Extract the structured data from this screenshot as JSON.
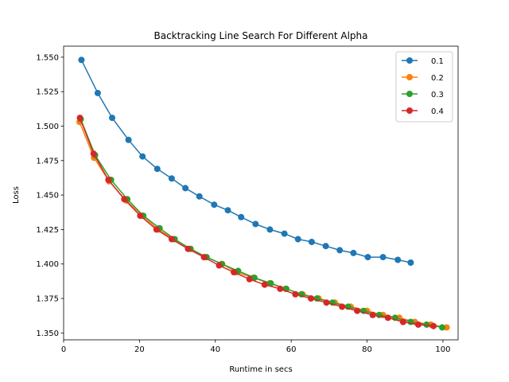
{
  "chart_data": {
    "type": "line",
    "title": "Backtracking Line Search For Different Alpha",
    "xlabel": "Runtime in secs",
    "ylabel": "Loss",
    "xlim": [
      0,
      104
    ],
    "ylim": [
      1.345,
      1.558
    ],
    "xticks": [
      0,
      20,
      40,
      60,
      80,
      100
    ],
    "xtick_labels": [
      "0",
      "20",
      "40",
      "60",
      "80",
      "100"
    ],
    "yticks": [
      1.35,
      1.375,
      1.4,
      1.425,
      1.45,
      1.475,
      1.5,
      1.525,
      1.55
    ],
    "ytick_labels": [
      "1.350",
      "1.375",
      "1.400",
      "1.425",
      "1.450",
      "1.475",
      "1.500",
      "1.525",
      "1.550"
    ],
    "grid": false,
    "legend_position": "top-right",
    "series": [
      {
        "name": "0.1",
        "color": "#1f77b4",
        "points": [
          [
            4.7,
            1.548
          ],
          [
            9.0,
            1.524
          ],
          [
            12.8,
            1.506
          ],
          [
            17.1,
            1.49
          ],
          [
            20.8,
            1.478
          ],
          [
            24.7,
            1.469
          ],
          [
            28.5,
            1.462
          ],
          [
            32.1,
            1.455
          ],
          [
            35.8,
            1.449
          ],
          [
            39.7,
            1.443
          ],
          [
            43.3,
            1.439
          ],
          [
            46.8,
            1.434
          ],
          [
            50.6,
            1.429
          ],
          [
            54.4,
            1.425
          ],
          [
            58.2,
            1.422
          ],
          [
            61.8,
            1.418
          ],
          [
            65.4,
            1.416
          ],
          [
            69.1,
            1.413
          ],
          [
            72.8,
            1.41
          ],
          [
            76.4,
            1.408
          ],
          [
            80.2,
            1.405
          ],
          [
            84.2,
            1.405
          ],
          [
            88.1,
            1.403
          ],
          [
            91.5,
            1.401
          ]
        ]
      },
      {
        "name": "0.2",
        "color": "#ff7f0e",
        "points": [
          [
            4.2,
            1.503
          ],
          [
            8.0,
            1.477
          ],
          [
            12.0,
            1.46
          ],
          [
            16.5,
            1.446
          ],
          [
            20.8,
            1.435
          ],
          [
            25.0,
            1.425
          ],
          [
            29.0,
            1.418
          ],
          [
            33.5,
            1.411
          ],
          [
            37.6,
            1.405
          ],
          [
            41.8,
            1.4
          ],
          [
            45.6,
            1.394
          ],
          [
            50.0,
            1.39
          ],
          [
            54.3,
            1.386
          ],
          [
            58.5,
            1.382
          ],
          [
            63.0,
            1.378
          ],
          [
            67.2,
            1.375
          ],
          [
            71.5,
            1.372
          ],
          [
            75.7,
            1.369
          ],
          [
            80.0,
            1.366
          ],
          [
            84.2,
            1.363
          ],
          [
            88.5,
            1.361
          ],
          [
            92.6,
            1.358
          ],
          [
            96.8,
            1.356
          ],
          [
            101.0,
            1.354
          ]
        ]
      },
      {
        "name": "0.3",
        "color": "#2ca02c",
        "points": [
          [
            4.5,
            1.505
          ],
          [
            8.3,
            1.479
          ],
          [
            12.5,
            1.461
          ],
          [
            16.8,
            1.447
          ],
          [
            21.0,
            1.435
          ],
          [
            25.3,
            1.426
          ],
          [
            29.3,
            1.418
          ],
          [
            33.4,
            1.411
          ],
          [
            37.7,
            1.405
          ],
          [
            41.7,
            1.4
          ],
          [
            46.0,
            1.395
          ],
          [
            50.3,
            1.39
          ],
          [
            54.6,
            1.386
          ],
          [
            58.7,
            1.382
          ],
          [
            62.7,
            1.378
          ],
          [
            66.8,
            1.375
          ],
          [
            70.9,
            1.372
          ],
          [
            75.0,
            1.369
          ],
          [
            79.1,
            1.366
          ],
          [
            83.2,
            1.363
          ],
          [
            87.4,
            1.361
          ],
          [
            91.5,
            1.358
          ],
          [
            95.7,
            1.356
          ],
          [
            99.8,
            1.354
          ]
        ]
      },
      {
        "name": "0.4",
        "color": "#d62728",
        "points": [
          [
            4.3,
            1.506
          ],
          [
            7.9,
            1.48
          ],
          [
            11.8,
            1.461
          ],
          [
            16.0,
            1.447
          ],
          [
            20.2,
            1.435
          ],
          [
            24.5,
            1.425
          ],
          [
            28.5,
            1.418
          ],
          [
            32.8,
            1.411
          ],
          [
            37.0,
            1.405
          ],
          [
            41.0,
            1.399
          ],
          [
            44.9,
            1.394
          ],
          [
            49.0,
            1.389
          ],
          [
            53.0,
            1.385
          ],
          [
            57.1,
            1.382
          ],
          [
            61.1,
            1.378
          ],
          [
            65.2,
            1.375
          ],
          [
            69.3,
            1.372
          ],
          [
            73.4,
            1.369
          ],
          [
            77.4,
            1.366
          ],
          [
            81.5,
            1.363
          ],
          [
            85.5,
            1.361
          ],
          [
            89.5,
            1.358
          ],
          [
            93.5,
            1.356
          ],
          [
            97.5,
            1.355
          ]
        ]
      }
    ]
  }
}
